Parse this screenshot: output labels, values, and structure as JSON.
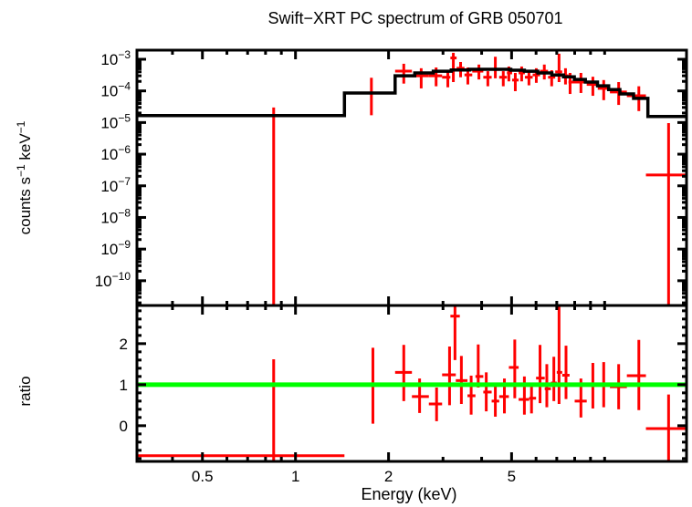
{
  "chart_data": {
    "type": "line",
    "subtype": "x-ray-spectrum-with-ratio",
    "title": "Swift−XRT PC spectrum of GRB 050701",
    "xlabel": "Energy (keV)",
    "colors": {
      "data": "#ff0000",
      "model": "#000000",
      "unity_line": "#00ff00",
      "frame": "#000000",
      "background": "#ffffff"
    },
    "x_axis": {
      "scale": "log",
      "lim": [
        0.307,
        18.4
      ],
      "major_ticks": [
        {
          "value": 0.5,
          "label": "0.5"
        },
        {
          "value": 1,
          "label": "1"
        },
        {
          "value": 2,
          "label": "2"
        },
        {
          "value": 5,
          "label": "5"
        }
      ],
      "minor_ticks": [
        0.4,
        0.6,
        0.7,
        0.8,
        0.9,
        3,
        4,
        6,
        7,
        8,
        9,
        10
      ]
    },
    "top_panel": {
      "ylabel": "counts s−1 keV−1",
      "ylabel_parts": [
        {
          "t": "counts s"
        },
        {
          "t": "−1",
          "sup": true
        },
        {
          "t": " keV"
        },
        {
          "t": "−1",
          "sup": true
        }
      ],
      "scale": "log",
      "lim": [
        1.65e-11,
        0.00194
      ],
      "major_ticks": [
        {
          "base": "10",
          "exp": "−3",
          "value": 0.001
        },
        {
          "base": "10",
          "exp": "−4",
          "value": 0.0001
        },
        {
          "base": "10",
          "exp": "−5",
          "value": 1e-05
        },
        {
          "base": "10",
          "exp": "−6",
          "value": 1e-06
        },
        {
          "base": "10",
          "exp": "−7",
          "value": 1e-07
        },
        {
          "base": "10",
          "exp": "−8",
          "value": 1e-08
        },
        {
          "base": "10",
          "exp": "−9",
          "value": 1e-09
        },
        {
          "base": "10",
          "exp": "−10",
          "value": 1e-10
        }
      ],
      "model_steps": [
        {
          "e1": 0.31,
          "e2": 1.44,
          "v": 1.66e-05
        },
        {
          "e1": 1.44,
          "e2": 2.1,
          "v": 8.6e-05
        },
        {
          "e1": 2.1,
          "e2": 2.43,
          "v": 0.0003
        },
        {
          "e1": 2.43,
          "e2": 2.79,
          "v": 0.00037
        },
        {
          "e1": 2.79,
          "e2": 3.19,
          "v": 0.00042
        },
        {
          "e1": 3.19,
          "e2": 3.66,
          "v": 0.00046
        },
        {
          "e1": 3.66,
          "e2": 4.97,
          "v": 0.00048
        },
        {
          "e1": 4.97,
          "e2": 5.5,
          "v": 0.00045
        },
        {
          "e1": 5.5,
          "e2": 6.08,
          "v": 0.00042
        },
        {
          "e1": 6.08,
          "e2": 6.75,
          "v": 0.00037
        },
        {
          "e1": 6.75,
          "e2": 7.36,
          "v": 0.00032
        },
        {
          "e1": 7.36,
          "e2": 7.98,
          "v": 0.00028
        },
        {
          "e1": 7.98,
          "e2": 8.66,
          "v": 0.00023
        },
        {
          "e1": 8.66,
          "e2": 9.48,
          "v": 0.00019
        },
        {
          "e1": 9.48,
          "e2": 10.3,
          "v": 0.000145
        },
        {
          "e1": 10.3,
          "e2": 11.2,
          "v": 0.00011
        },
        {
          "e1": 11.2,
          "e2": 12.4,
          "v": 8e-05
        },
        {
          "e1": 12.4,
          "e2": 13.8,
          "v": 5.8e-05
        },
        {
          "e1": 13.8,
          "e2": 18.4,
          "v": 1.55e-05
        }
      ],
      "points": [
        {
          "e": 0.85,
          "elo": 0.31,
          "ehi": 1.44,
          "v": 1.66e-05,
          "vlo": 1e-11,
          "vhi": 3e-05
        },
        {
          "e": 1.76,
          "elo": 1.44,
          "ehi": 2.1,
          "v": 8.6e-05,
          "vlo": 1.7e-05,
          "vhi": 0.00026
        },
        {
          "e": 2.24,
          "elo": 2.1,
          "ehi": 2.38,
          "v": 0.00042,
          "vlo": 0.00017,
          "vhi": 0.00072
        },
        {
          "e": 2.55,
          "elo": 2.38,
          "ehi": 2.7,
          "v": 0.0003,
          "vlo": 0.00012,
          "vhi": 0.00052
        },
        {
          "e": 2.85,
          "elo": 2.7,
          "ehi": 2.98,
          "v": 0.0003,
          "vlo": 0.00014,
          "vhi": 0.00055
        },
        {
          "e": 3.11,
          "elo": 2.98,
          "ehi": 3.17,
          "v": 0.00027,
          "vlo": 0.00013,
          "vhi": 0.00042
        },
        {
          "e": 3.24,
          "elo": 3.17,
          "ehi": 3.32,
          "v": 0.0011,
          "vlo": 0.00019,
          "vhi": 0.0016
        },
        {
          "e": 3.42,
          "elo": 3.32,
          "ehi": 3.52,
          "v": 0.00052,
          "vlo": 0.00027,
          "vhi": 0.00082
        },
        {
          "e": 3.61,
          "elo": 3.52,
          "ehi": 3.73,
          "v": 0.00032,
          "vlo": 0.00016,
          "vhi": 0.00055
        },
        {
          "e": 3.92,
          "elo": 3.73,
          "ehi": 4.05,
          "v": 0.00042,
          "vlo": 0.00023,
          "vhi": 0.00068
        },
        {
          "e": 4.19,
          "elo": 4.05,
          "ehi": 4.31,
          "v": 0.00027,
          "vlo": 0.00014,
          "vhi": 0.00042
        },
        {
          "e": 4.43,
          "elo": 4.31,
          "ehi": 4.56,
          "v": 0.00048,
          "vlo": 0.00025,
          "vhi": 0.0012
        },
        {
          "e": 4.7,
          "elo": 4.56,
          "ehi": 4.83,
          "v": 0.00027,
          "vlo": 0.00014,
          "vhi": 0.00042
        },
        {
          "e": 4.9,
          "elo": 4.83,
          "ehi": 5.02,
          "v": 0.00037,
          "vlo": 0.0002,
          "vhi": 0.00059
        },
        {
          "e": 5.14,
          "elo": 5.02,
          "ehi": 5.27,
          "v": 0.00022,
          "vlo": 9.8e-05,
          "vhi": 0.00037
        },
        {
          "e": 5.39,
          "elo": 5.27,
          "ehi": 5.52,
          "v": 0.00037,
          "vlo": 0.0002,
          "vhi": 0.00059
        },
        {
          "e": 5.69,
          "elo": 5.52,
          "ehi": 5.85,
          "v": 0.00027,
          "vlo": 0.00015,
          "vhi": 0.00042
        },
        {
          "e": 6.01,
          "elo": 5.85,
          "ehi": 6.18,
          "v": 0.00032,
          "vlo": 0.00018,
          "vhi": 0.00052
        },
        {
          "e": 6.38,
          "elo": 6.18,
          "ehi": 6.56,
          "v": 0.00042,
          "vlo": 0.00023,
          "vhi": 0.00068
        },
        {
          "e": 6.74,
          "elo": 6.56,
          "ehi": 6.92,
          "v": 0.00027,
          "vlo": 0.00014,
          "vhi": 0.00045
        },
        {
          "e": 7.12,
          "elo": 6.92,
          "ehi": 7.29,
          "v": 0.0004,
          "vlo": 0.00019,
          "vhi": 0.0015
        },
        {
          "e": 7.47,
          "elo": 7.29,
          "ehi": 7.64,
          "v": 0.0003,
          "vlo": 0.00016,
          "vhi": 0.00052
        },
        {
          "e": 7.73,
          "elo": 7.64,
          "ehi": 8.0,
          "v": 0.00019,
          "vlo": 8e-05,
          "vhi": 0.00037
        },
        {
          "e": 8.38,
          "elo": 8.0,
          "ehi": 8.75,
          "v": 0.00019,
          "vlo": 8.6e-05,
          "vhi": 0.00037
        },
        {
          "e": 9.16,
          "elo": 8.75,
          "ehi": 9.5,
          "v": 0.00016,
          "vlo": 7e-05,
          "vhi": 0.00028
        },
        {
          "e": 9.93,
          "elo": 9.5,
          "ehi": 10.4,
          "v": 0.00012,
          "vlo": 5.1e-05,
          "vhi": 0.00022
        },
        {
          "e": 11.1,
          "elo": 10.4,
          "ehi": 11.8,
          "v": 9.2e-05,
          "vlo": 3.6e-05,
          "vhi": 0.00019
        },
        {
          "e": 12.9,
          "elo": 11.8,
          "ehi": 13.6,
          "v": 7e-05,
          "vlo": 2.3e-05,
          "vhi": 0.00014
        },
        {
          "e": 16.1,
          "elo": 13.6,
          "ehi": 18.4,
          "v": 2.2e-07,
          "vlo": 1e-11,
          "vhi": 9.6e-06
        }
      ]
    },
    "ratio_panel": {
      "ylabel": "ratio",
      "scale": "linear",
      "lim": [
        -0.87,
        2.93
      ],
      "major_ticks": [
        {
          "value": 0,
          "label": "0"
        },
        {
          "value": 1,
          "label": "1"
        },
        {
          "value": 2,
          "label": "2"
        }
      ],
      "minor_tick_step": 0.2,
      "unity_line": {
        "ratio": 1
      },
      "points": [
        {
          "e": 0.85,
          "elo": 0.31,
          "ehi": 1.44,
          "r": -0.73,
          "rlo": -1.0,
          "rhi": 1.62
        },
        {
          "e": 1.78,
          "elo": 1.44,
          "ehi": 2.1,
          "r": 1.0,
          "rlo": 0.05,
          "rhi": 1.9
        },
        {
          "e": 2.24,
          "elo": 2.1,
          "ehi": 2.38,
          "r": 1.3,
          "rlo": 0.6,
          "rhi": 1.97
        },
        {
          "e": 2.52,
          "elo": 2.38,
          "ehi": 2.7,
          "r": 0.71,
          "rlo": 0.31,
          "rhi": 1.15
        },
        {
          "e": 2.86,
          "elo": 2.7,
          "ehi": 2.98,
          "r": 0.53,
          "rlo": 0.11,
          "rhi": 0.93
        },
        {
          "e": 3.15,
          "elo": 2.98,
          "ehi": 3.3,
          "r": 1.24,
          "rlo": 0.5,
          "rhi": 1.93
        },
        {
          "e": 3.28,
          "elo": 3.17,
          "ehi": 3.4,
          "r": 2.67,
          "rlo": 1.6,
          "rhi": 2.9
        },
        {
          "e": 3.44,
          "elo": 3.3,
          "ehi": 3.6,
          "r": 1.1,
          "rlo": 0.53,
          "rhi": 1.7
        },
        {
          "e": 3.7,
          "elo": 3.6,
          "ehi": 3.82,
          "r": 0.73,
          "rlo": 0.27,
          "rhi": 1.22
        },
        {
          "e": 3.9,
          "elo": 3.82,
          "ehi": 4.05,
          "r": 1.2,
          "rlo": 0.93,
          "rhi": 1.98
        },
        {
          "e": 4.14,
          "elo": 4.05,
          "ehi": 4.31,
          "r": 0.82,
          "rlo": 0.35,
          "rhi": 1.3
        },
        {
          "e": 4.43,
          "elo": 4.31,
          "ehi": 4.56,
          "r": 0.6,
          "rlo": 0.22,
          "rhi": 0.99
        },
        {
          "e": 4.74,
          "elo": 4.56,
          "ehi": 4.9,
          "r": 0.71,
          "rlo": 0.3,
          "rhi": 1.15
        },
        {
          "e": 5.12,
          "elo": 4.9,
          "ehi": 5.27,
          "r": 1.42,
          "rlo": 0.67,
          "rhi": 2.1
        },
        {
          "e": 5.5,
          "elo": 5.27,
          "ehi": 5.7,
          "r": 0.64,
          "rlo": 0.27,
          "rhi": 1.2
        },
        {
          "e": 5.8,
          "elo": 5.7,
          "ehi": 6.0,
          "r": 0.67,
          "rlo": 0.3,
          "rhi": 1.05
        },
        {
          "e": 6.18,
          "elo": 6.0,
          "ehi": 6.4,
          "r": 1.16,
          "rlo": 0.55,
          "rhi": 1.97
        },
        {
          "e": 6.5,
          "elo": 6.4,
          "ehi": 6.7,
          "r": 0.9,
          "rlo": 0.45,
          "rhi": 1.5
        },
        {
          "e": 6.85,
          "elo": 6.7,
          "ehi": 7.0,
          "r": 1.04,
          "rlo": 0.6,
          "rhi": 1.68
        },
        {
          "e": 7.12,
          "elo": 7.0,
          "ehi": 7.29,
          "r": 1.3,
          "rlo": 0.53,
          "rhi": 2.9
        },
        {
          "e": 7.5,
          "elo": 7.29,
          "ehi": 7.7,
          "r": 1.23,
          "rlo": 0.65,
          "rhi": 1.95
        },
        {
          "e": 8.38,
          "elo": 8.0,
          "ehi": 8.75,
          "r": 0.6,
          "rlo": 0.2,
          "rhi": 1.15
        },
        {
          "e": 9.16,
          "elo": 8.75,
          "ehi": 9.5,
          "r": 1.0,
          "rlo": 0.42,
          "rhi": 1.53
        },
        {
          "e": 9.93,
          "elo": 9.5,
          "ehi": 10.4,
          "r": 1.0,
          "rlo": 0.45,
          "rhi": 1.55
        },
        {
          "e": 11.1,
          "elo": 10.4,
          "ehi": 11.8,
          "r": 0.95,
          "rlo": 0.4,
          "rhi": 1.5
        },
        {
          "e": 12.9,
          "elo": 11.8,
          "ehi": 13.6,
          "r": 1.22,
          "rlo": 0.38,
          "rhi": 2.09
        },
        {
          "e": 16.1,
          "elo": 13.6,
          "ehi": 18.4,
          "r": -0.07,
          "rlo": -1.0,
          "rhi": 0.76
        }
      ]
    }
  }
}
